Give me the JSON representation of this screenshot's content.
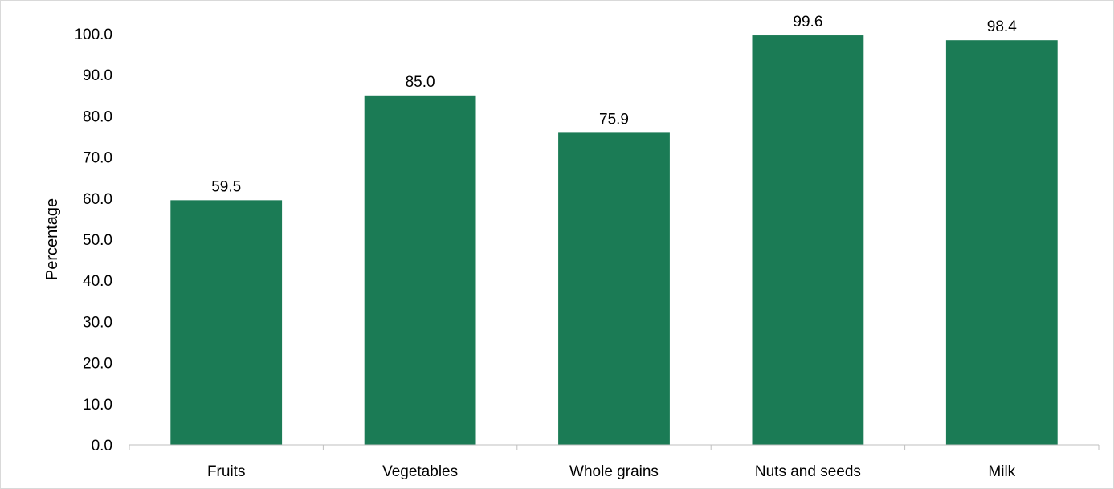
{
  "chart_data": {
    "type": "bar",
    "title": "",
    "xlabel": "",
    "ylabel": "Percentage",
    "categories": [
      "Fruits",
      "Vegetables",
      "Whole grains",
      "Nuts and seeds",
      "Milk"
    ],
    "series": [
      {
        "values": [
          59.5,
          85.0,
          75.9,
          99.6,
          98.4
        ],
        "color": "#1b7b55"
      }
    ],
    "data_labels": [
      "59.5",
      "85.0",
      "75.9",
      "99.6",
      "98.4"
    ],
    "ylim": [
      0,
      100
    ],
    "y_ticks": [
      "0.0",
      "10.0",
      "20.0",
      "30.0",
      "40.0",
      "50.0",
      "60.0",
      "70.0",
      "80.0",
      "90.0",
      "100.0"
    ],
    "grid": false,
    "legend": "none",
    "axis_color": "#bfbfbf"
  }
}
